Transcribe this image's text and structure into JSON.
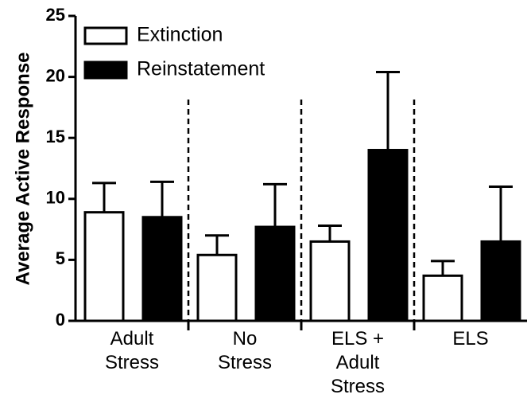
{
  "chart_data": {
    "type": "bar",
    "ylabel": "Average Active Response",
    "categories": [
      "Adult\nStress",
      "No\nStress",
      "ELS +\nAdult\nStress",
      "ELS"
    ],
    "series": [
      {
        "name": "Extinction",
        "color": "#ffffff",
        "values": [
          8.9,
          5.4,
          6.5,
          3.7
        ],
        "errors": [
          2.4,
          1.6,
          1.3,
          1.2
        ]
      },
      {
        "name": "Reinstatement",
        "color": "#000000",
        "values": [
          8.5,
          7.7,
          14.0,
          6.5
        ],
        "errors": [
          2.9,
          3.5,
          6.4,
          4.5
        ]
      }
    ],
    "ylim": [
      0,
      25
    ],
    "yticks": [
      0,
      5,
      10,
      15,
      20,
      25
    ],
    "legend": "upper left"
  }
}
